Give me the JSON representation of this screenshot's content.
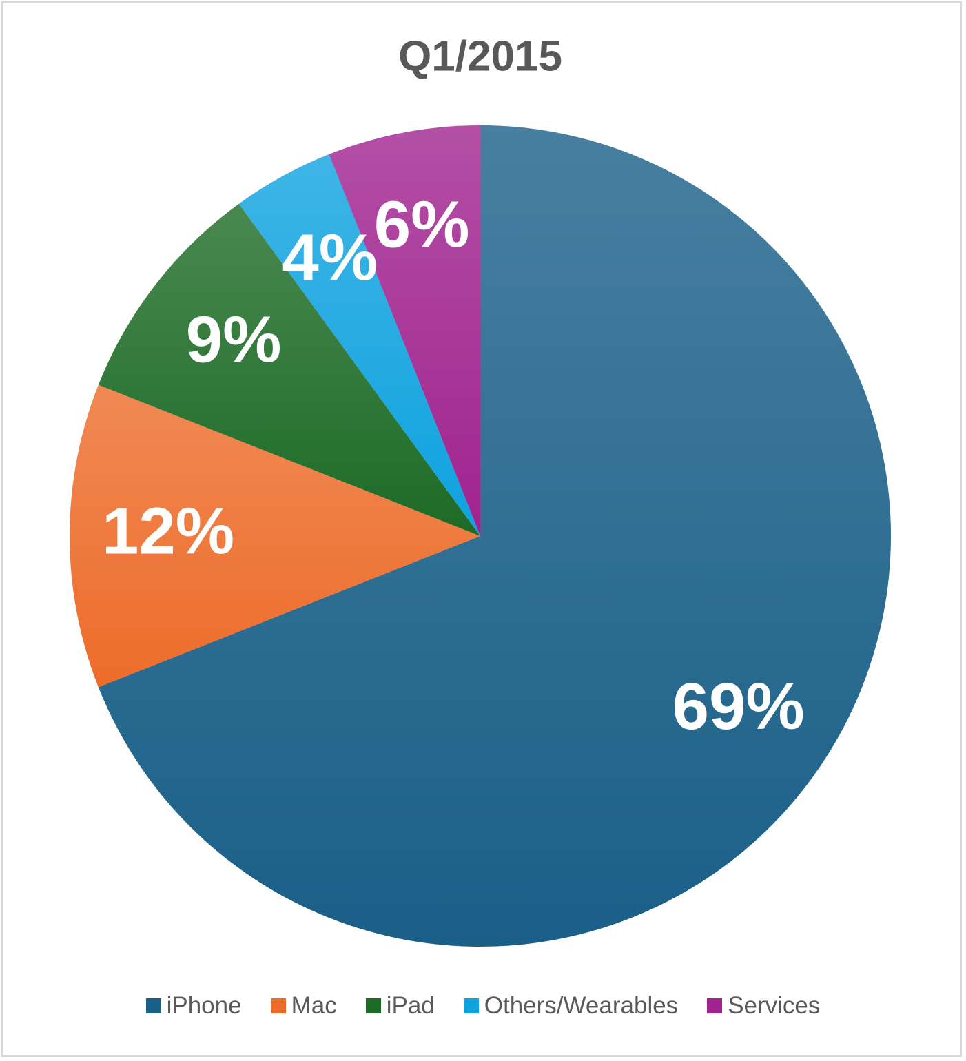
{
  "chart_data": {
    "type": "pie",
    "title": "Q1/2015",
    "categories": [
      "iPhone",
      "Mac",
      "iPad",
      "Others/Wearables",
      "Services"
    ],
    "values": [
      69,
      12,
      9,
      4,
      6
    ],
    "value_labels": [
      "69%",
      "12%",
      "9%",
      "4%",
      "6%"
    ],
    "colors": [
      "#1a5f88",
      "#ed6c2a",
      "#1c6b25",
      "#0ea2df",
      "#a0238f"
    ],
    "legend": "bottom"
  }
}
